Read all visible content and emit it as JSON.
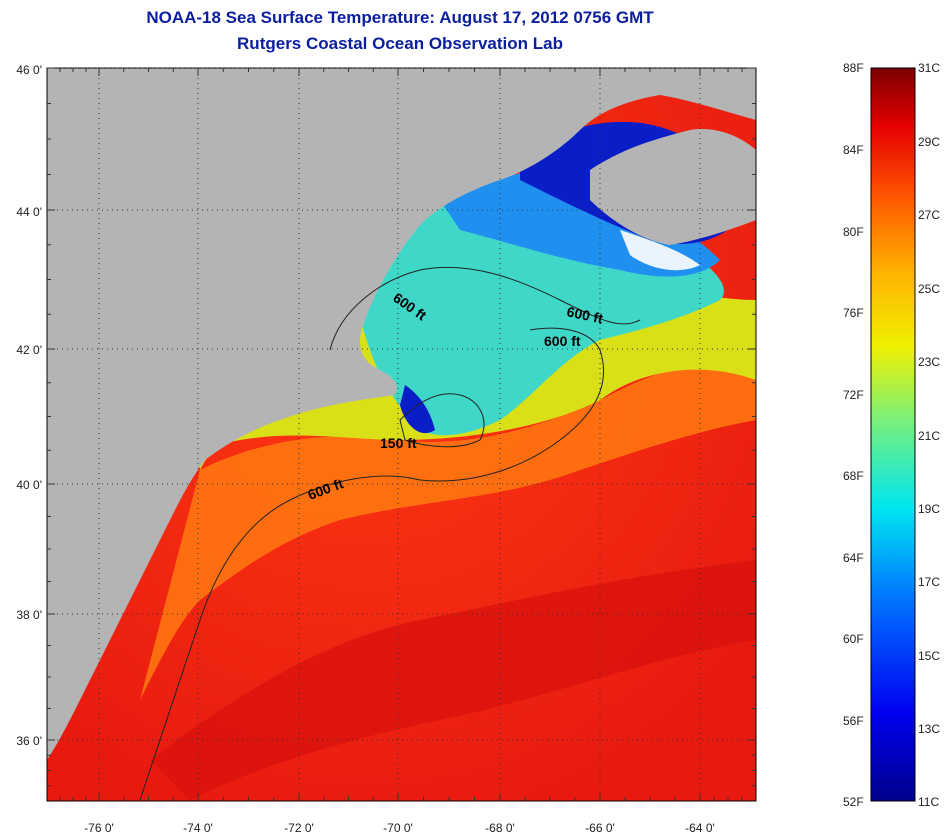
{
  "title": "NOAA-18 Sea Surface Temperature:  August 17, 2012 0756 GMT",
  "subtitle": "Rutgers Coastal Ocean Observation Lab",
  "axes": {
    "lat_labels": [
      "46 0'",
      "44 0'",
      "42 0'",
      "40 0'",
      "38 0'",
      "36 0'"
    ],
    "lon_labels": [
      "-76 0'",
      "-74 0'",
      "-72 0'",
      "-70 0'",
      "-68 0'",
      "-66 0'",
      "-64 0'"
    ]
  },
  "contours": [
    "600 ft",
    "600 ft",
    "600 ft",
    "150 ft",
    "600 ft"
  ],
  "colorbar": {
    "f_labels": [
      "88F",
      "84F",
      "80F",
      "76F",
      "72F",
      "68F",
      "64F",
      "60F",
      "56F",
      "52F"
    ],
    "c_labels": [
      "31C",
      "29C",
      "27C",
      "25C",
      "23C",
      "21C",
      "19C",
      "17C",
      "15C",
      "13C",
      "11C"
    ]
  },
  "colors": {
    "title": "#0b1ea0",
    "land": "#b4b4b4",
    "cold": "#000a8c",
    "warm": "#e62814",
    "hot": "#780000"
  }
}
